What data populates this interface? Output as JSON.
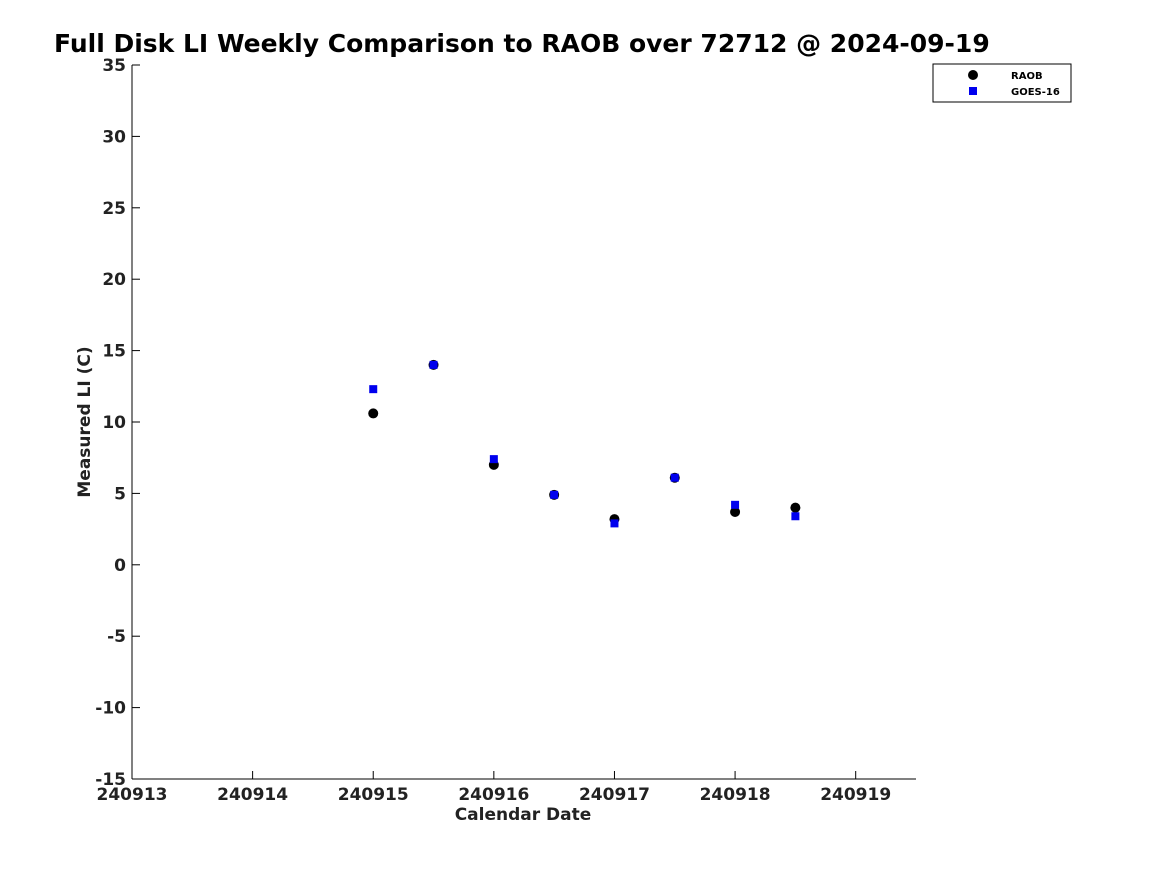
{
  "chart_data": {
    "type": "scatter",
    "title": "Full Disk LI Weekly Comparison to RAOB over 72712 @ 2024-09-19",
    "xlabel": "Calendar Date",
    "ylabel": "Measured LI (C)",
    "xlim": [
      "2024-09-13",
      "2024-09-19 12:00"
    ],
    "ylim": [
      -15,
      35
    ],
    "x_ticks": [
      {
        "value": "2024-09-13",
        "label": "240913"
      },
      {
        "value": "2024-09-14",
        "label": "240914"
      },
      {
        "value": "2024-09-15",
        "label": "240915"
      },
      {
        "value": "2024-09-16",
        "label": "240916"
      },
      {
        "value": "2024-09-17",
        "label": "240917"
      },
      {
        "value": "2024-09-18",
        "label": "240918"
      },
      {
        "value": "2024-09-19",
        "label": "240919"
      }
    ],
    "y_ticks": [
      35,
      30,
      25,
      20,
      15,
      10,
      5,
      0,
      -5,
      -10,
      -15
    ],
    "grid": false,
    "legend_position": "top-right",
    "series": [
      {
        "name": "RAOB",
        "marker": "circle",
        "color": "#000000",
        "points": [
          {
            "x": "2024-09-15 00:00",
            "y": 10.6
          },
          {
            "x": "2024-09-15 12:00",
            "y": 14.0
          },
          {
            "x": "2024-09-16 00:00",
            "y": 7.0
          },
          {
            "x": "2024-09-16 12:00",
            "y": 4.9
          },
          {
            "x": "2024-09-17 00:00",
            "y": 3.2
          },
          {
            "x": "2024-09-17 12:00",
            "y": 6.1
          },
          {
            "x": "2024-09-18 00:00",
            "y": 3.7
          },
          {
            "x": "2024-09-18 12:00",
            "y": 4.0
          }
        ]
      },
      {
        "name": "GOES-16",
        "marker": "square",
        "color": "#0000ee",
        "points": [
          {
            "x": "2024-09-15 00:00",
            "y": 12.3
          },
          {
            "x": "2024-09-15 12:00",
            "y": 14.0
          },
          {
            "x": "2024-09-16 00:00",
            "y": 7.4
          },
          {
            "x": "2024-09-16 12:00",
            "y": 4.9
          },
          {
            "x": "2024-09-17 00:00",
            "y": 2.9
          },
          {
            "x": "2024-09-17 12:00",
            "y": 6.1
          },
          {
            "x": "2024-09-18 00:00",
            "y": 4.2
          },
          {
            "x": "2024-09-18 12:00",
            "y": 3.4
          }
        ]
      }
    ]
  }
}
